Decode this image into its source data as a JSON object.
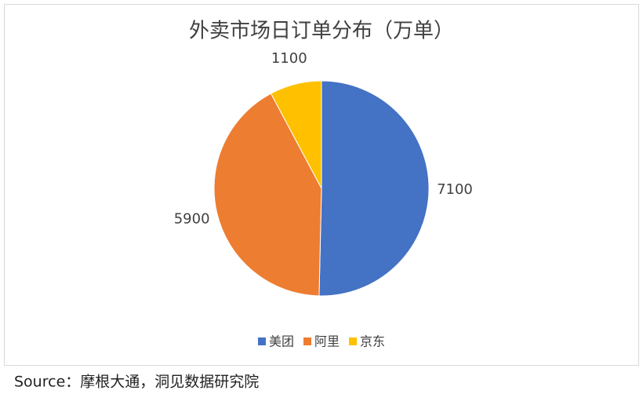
{
  "chart_data": {
    "type": "pie",
    "title": "外卖市场日订单分布（万单）",
    "categories": [
      "美团",
      "阿里",
      "京东"
    ],
    "values": [
      7100,
      5900,
      1100
    ],
    "colors": [
      "#4472c4",
      "#ed7d31",
      "#ffc000"
    ],
    "legend": "bottom"
  },
  "source": "Source：摩根大通，洞见数据研究院"
}
